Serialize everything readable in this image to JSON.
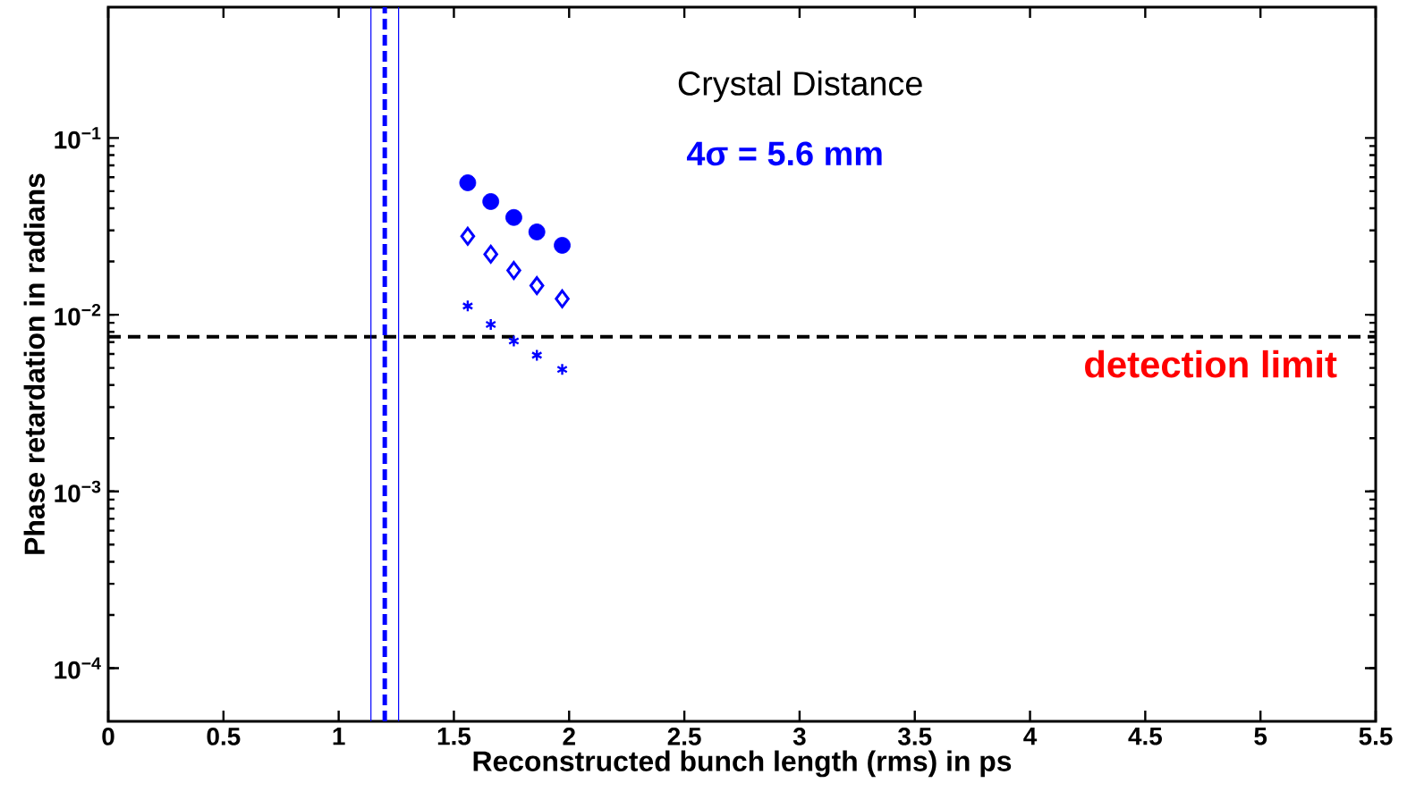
{
  "chart_data": {
    "type": "scatter",
    "title": "Crystal Distance",
    "xlabel": "Reconstructed bunch length (rms) in ps",
    "ylabel": "Phase retardation in radians",
    "annotations": [
      "4σ = 5.6 mm"
    ],
    "log": "y",
    "xlim": [
      0,
      5.5
    ],
    "ylim": [
      5e-05,
      0.55
    ],
    "xticks": [
      0,
      0.5,
      1,
      1.5,
      2,
      2.5,
      3,
      3.5,
      4,
      4.5,
      5,
      5.5
    ],
    "yticks": [
      {
        "value": 0.0001,
        "label": "10$^{−4}$"
      },
      {
        "value": 0.001,
        "label": "10$^{−3}$"
      },
      {
        "value": 0.01,
        "label": "10$^{−2}$"
      },
      {
        "value": 0.1,
        "label": "10$^{−1}$"
      }
    ],
    "x": [
      1.56,
      1.66,
      1.76,
      1.86,
      1.97
    ],
    "series": [
      {
        "color": "#0000ff",
        "marker": "circle",
        "values": [
          0.0558,
          0.0437,
          0.0355,
          0.0294,
          0.0247
        ]
      },
      {
        "color": "#0000ff",
        "marker": "diamond",
        "values": [
          0.0278,
          0.022,
          0.0178,
          0.0146,
          0.0123
        ]
      },
      {
        "color": "#0000ff",
        "marker": "cross",
        "values": [
          0.0112,
          0.0088,
          0.0071,
          0.0059,
          0.0049
        ]
      }
    ],
    "ref_lines": [
      {
        "axis": "y",
        "value": 0.0075,
        "label": "detection limit",
        "color": "#000000",
        "line_style": "dashed"
      },
      {
        "axis": "x",
        "value": 1.2,
        "color": "#0000ff",
        "line_style": "dashed"
      },
      {
        "axis": "x",
        "value": 1.14,
        "color": "#0000ff",
        "line_style": "solid"
      },
      {
        "axis": "x",
        "value": 1.26,
        "color": "#0000ff",
        "line_style": "solid"
      }
    ]
  }
}
